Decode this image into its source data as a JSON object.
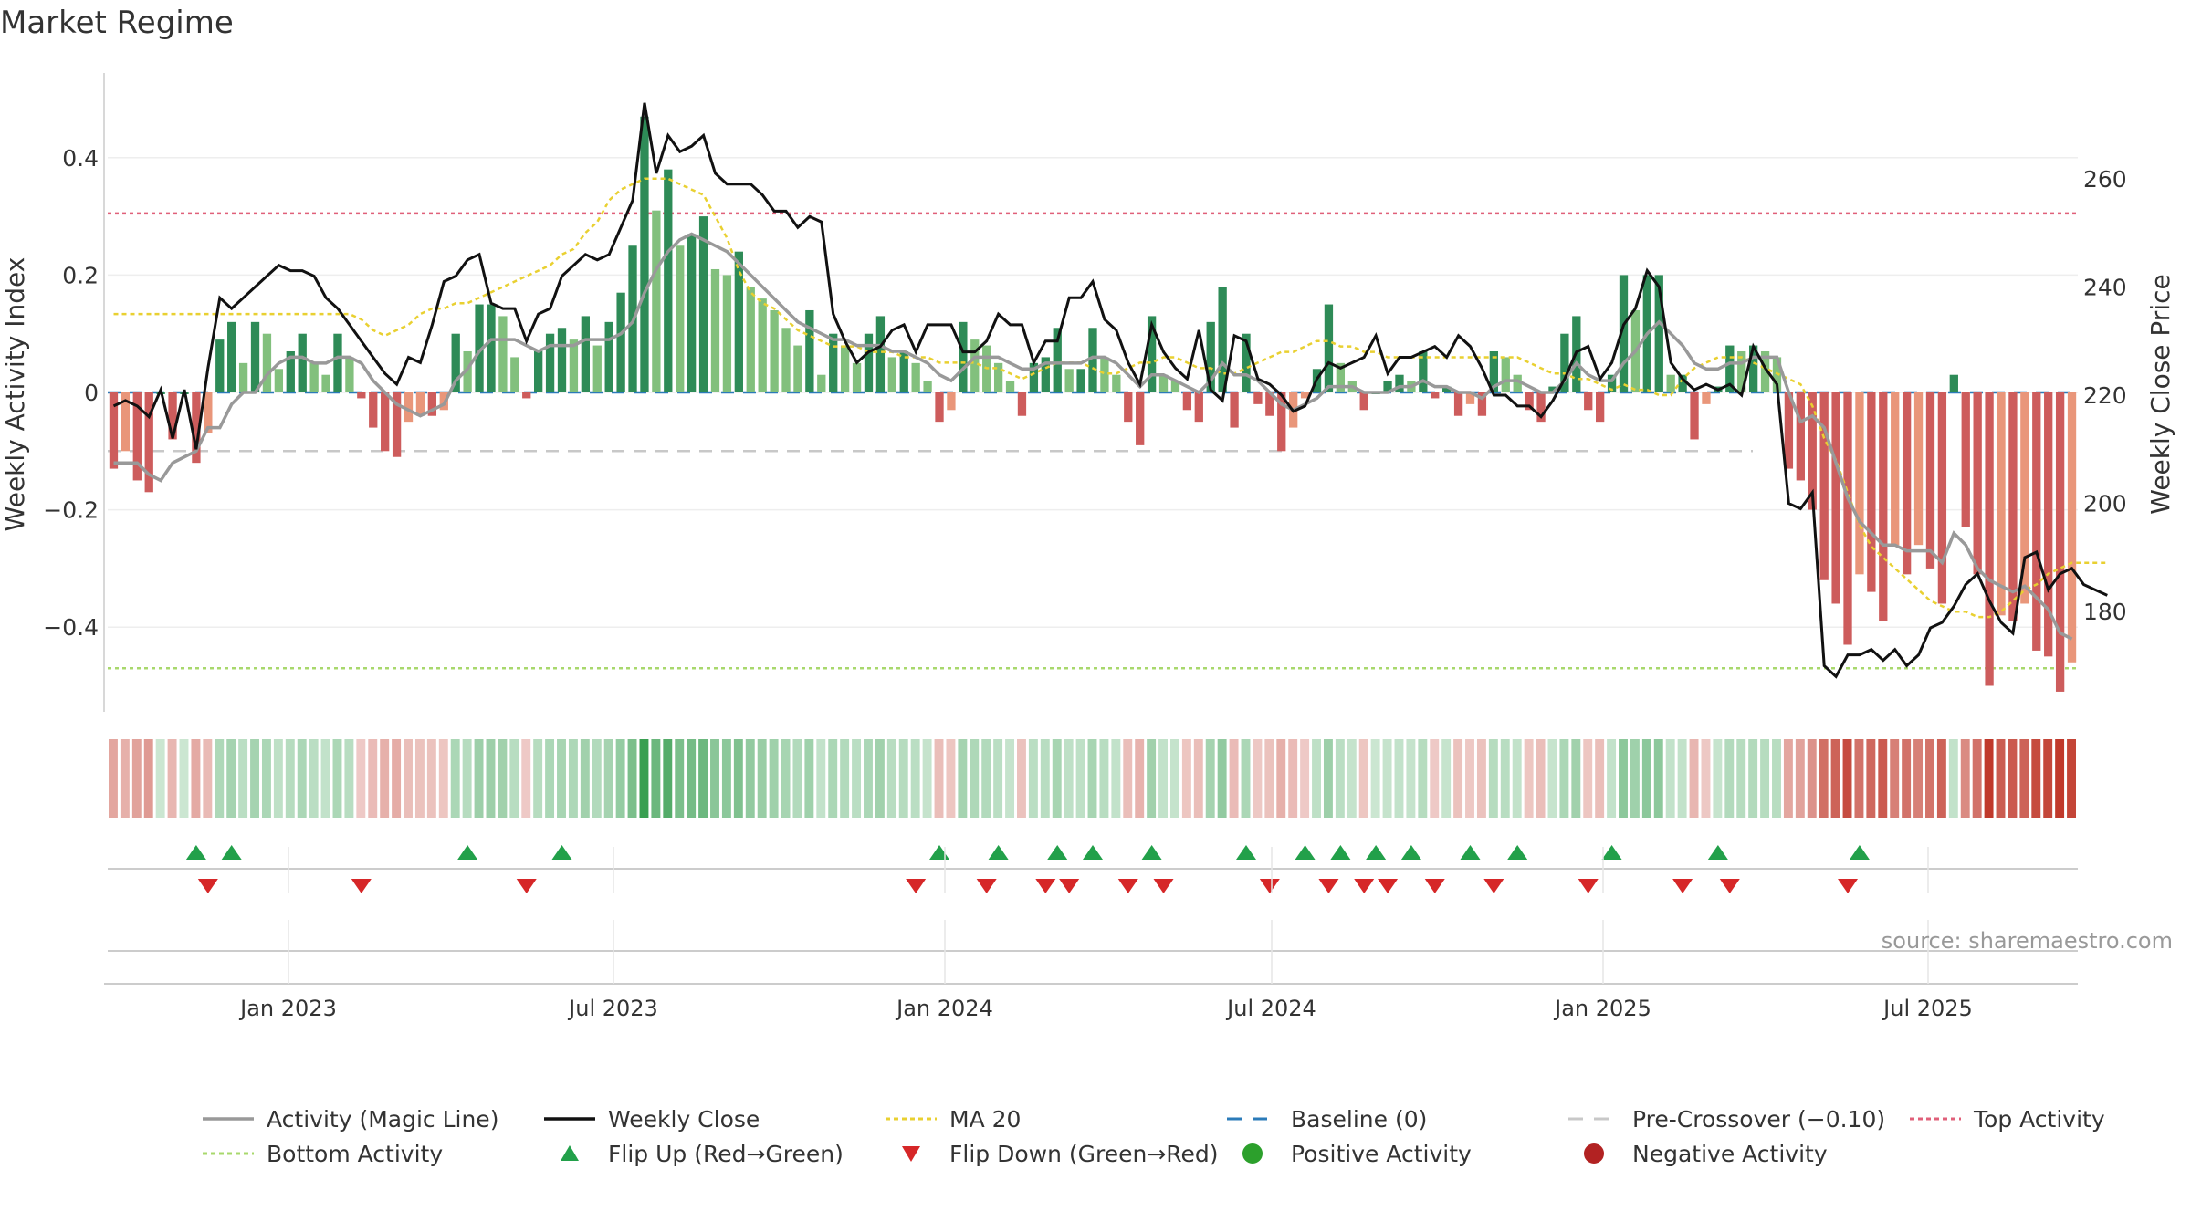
{
  "chart_data": {
    "type": "bar",
    "title": "Market Regime",
    "ylabel": "Weekly Activity Index",
    "ylabel_right": "Weekly Close Price",
    "ylim": [
      -0.54,
      0.54
    ],
    "ylim_right": [
      162,
      278
    ],
    "x_ticks": [
      "Jan 2023",
      "Jul 2023",
      "Jan 2024",
      "Jul 2024",
      "Jan 2025",
      "Jul 2025"
    ],
    "y_ticks": [
      "0.4",
      "0.2",
      "0",
      "−0.2",
      "−0.4"
    ],
    "y_ticks_right": [
      "260",
      "240",
      "220",
      "200",
      "180"
    ],
    "reference_lines": {
      "top_activity": 0.305,
      "bottom_activity": -0.47,
      "pre_crossover": -0.1,
      "baseline": 0
    },
    "activity": [
      -0.13,
      -0.1,
      -0.15,
      -0.17,
      0.0,
      -0.08,
      0.0,
      -0.12,
      -0.07,
      0.09,
      0.12,
      0.05,
      0.12,
      0.1,
      0.04,
      0.07,
      0.1,
      0.05,
      0.03,
      0.1,
      0.06,
      -0.01,
      -0.06,
      -0.1,
      -0.11,
      -0.05,
      -0.04,
      -0.04,
      -0.03,
      0.1,
      0.07,
      0.15,
      0.15,
      0.13,
      0.06,
      -0.01,
      0.07,
      0.1,
      0.11,
      0.09,
      0.13,
      0.08,
      0.12,
      0.17,
      0.25,
      0.47,
      0.31,
      0.38,
      0.25,
      0.27,
      0.3,
      0.21,
      0.2,
      0.24,
      0.18,
      0.16,
      0.14,
      0.11,
      0.08,
      0.14,
      0.03,
      0.1,
      0.08,
      0.05,
      0.1,
      0.13,
      0.06,
      0.07,
      0.05,
      0.02,
      -0.05,
      -0.03,
      0.12,
      0.09,
      0.08,
      0.05,
      0.02,
      -0.04,
      0.05,
      0.06,
      0.11,
      0.04,
      0.04,
      0.11,
      0.06,
      0.03,
      -0.05,
      -0.09,
      0.13,
      0.03,
      0.02,
      -0.03,
      -0.05,
      0.12,
      0.18,
      -0.06,
      0.1,
      -0.02,
      -0.04,
      -0.1,
      -0.06,
      -0.01,
      0.04,
      0.15,
      0.05,
      0.02,
      -0.03,
      0.0,
      0.02,
      0.03,
      0.02,
      0.07,
      -0.01,
      0.01,
      -0.04,
      -0.02,
      -0.04,
      0.07,
      0.06,
      0.03,
      -0.03,
      -0.05,
      0.01,
      0.1,
      0.13,
      -0.03,
      -0.05,
      0.03,
      0.2,
      0.14,
      0.2,
      0.2,
      0.03,
      0.03,
      -0.08,
      -0.02,
      0.01,
      0.08,
      0.07,
      0.08,
      0.07,
      0.06,
      -0.13,
      -0.15,
      -0.2,
      -0.32,
      -0.36,
      -0.43,
      -0.31,
      -0.34,
      -0.39,
      -0.26,
      -0.31,
      -0.26,
      -0.3,
      -0.36,
      0.03,
      -0.23,
      -0.31,
      -0.5,
      -0.38,
      -0.39,
      -0.36,
      -0.44,
      -0.45,
      -0.51,
      -0.46
    ],
    "magic_line": [
      -0.12,
      -0.12,
      -0.12,
      -0.14,
      -0.15,
      -0.12,
      -0.11,
      -0.1,
      -0.06,
      -0.06,
      -0.02,
      0.0,
      0.0,
      0.03,
      0.05,
      0.06,
      0.06,
      0.05,
      0.05,
      0.06,
      0.06,
      0.05,
      0.02,
      0.0,
      -0.02,
      -0.03,
      -0.04,
      -0.03,
      -0.02,
      0.02,
      0.04,
      0.07,
      0.09,
      0.09,
      0.09,
      0.08,
      0.07,
      0.08,
      0.08,
      0.08,
      0.09,
      0.09,
      0.09,
      0.1,
      0.12,
      0.17,
      0.21,
      0.24,
      0.26,
      0.27,
      0.26,
      0.25,
      0.24,
      0.22,
      0.2,
      0.18,
      0.16,
      0.14,
      0.12,
      0.11,
      0.1,
      0.09,
      0.09,
      0.08,
      0.08,
      0.08,
      0.07,
      0.07,
      0.06,
      0.05,
      0.03,
      0.02,
      0.04,
      0.06,
      0.06,
      0.06,
      0.05,
      0.04,
      0.04,
      0.05,
      0.05,
      0.05,
      0.05,
      0.06,
      0.06,
      0.05,
      0.03,
      0.01,
      0.03,
      0.03,
      0.02,
      0.01,
      0.0,
      0.02,
      0.05,
      0.03,
      0.03,
      0.02,
      0.0,
      -0.02,
      -0.03,
      -0.02,
      -0.01,
      0.01,
      0.01,
      0.01,
      0.0,
      0.0,
      0.0,
      0.01,
      0.01,
      0.02,
      0.01,
      0.01,
      0.0,
      0.0,
      -0.01,
      0.01,
      0.02,
      0.02,
      0.01,
      0.0,
      0.0,
      0.02,
      0.05,
      0.03,
      0.02,
      0.02,
      0.05,
      0.07,
      0.1,
      0.12,
      0.1,
      0.08,
      0.05,
      0.04,
      0.04,
      0.05,
      0.05,
      0.06,
      0.06,
      0.06,
      0.0,
      -0.05,
      -0.04,
      -0.06,
      -0.12,
      -0.18,
      -0.22,
      -0.24,
      -0.26,
      -0.26,
      -0.27,
      -0.27,
      -0.27,
      -0.29,
      -0.24,
      -0.26,
      -0.3,
      -0.32,
      -0.33,
      -0.34,
      -0.33,
      -0.35,
      -0.37,
      -0.41,
      -0.42
    ],
    "weekly_close": [
      218,
      219,
      218,
      216,
      221,
      212,
      221,
      210,
      225,
      238,
      236,
      238,
      240,
      242,
      244,
      243,
      243,
      242,
      238,
      236,
      233,
      230,
      227,
      224,
      222,
      227,
      226,
      233,
      241,
      242,
      245,
      246,
      237,
      236,
      236,
      230,
      235,
      236,
      242,
      244,
      246,
      245,
      246,
      251,
      256,
      274,
      261,
      268,
      265,
      266,
      268,
      261,
      259,
      259,
      259,
      257,
      254,
      254,
      251,
      253,
      252,
      235,
      230,
      226,
      228,
      229,
      232,
      233,
      228,
      233,
      233,
      233,
      228,
      228,
      230,
      235,
      233,
      233,
      226,
      230,
      230,
      238,
      238,
      241,
      234,
      232,
      226,
      222,
      233,
      228,
      225,
      223,
      232,
      221,
      219,
      231,
      230,
      223,
      222,
      220,
      217,
      218,
      223,
      226,
      225,
      226,
      227,
      231,
      224,
      227,
      227,
      228,
      229,
      227,
      231,
      229,
      225,
      220,
      220,
      218,
      218,
      216,
      219,
      223,
      228,
      229,
      223,
      226,
      233,
      236,
      243,
      240,
      226,
      223,
      221,
      222,
      221,
      222,
      220,
      229,
      225,
      222,
      200,
      199,
      202,
      170,
      168,
      172,
      172,
      173,
      171,
      173,
      170,
      172,
      177,
      178,
      181,
      185,
      187,
      182,
      178,
      176,
      190,
      191,
      184,
      187,
      188,
      185,
      184,
      183
    ],
    "ma20": [
      235,
      235,
      235,
      235,
      235,
      235,
      235,
      235,
      235,
      235,
      235,
      235,
      235,
      235,
      235,
      235,
      235,
      235,
      235,
      235,
      235,
      234,
      232,
      231,
      232,
      233,
      235,
      236,
      236,
      237,
      237,
      238,
      239,
      240,
      241,
      242,
      243,
      244,
      246,
      247,
      250,
      252,
      256,
      258,
      259,
      260,
      260,
      260,
      259,
      258,
      257,
      253,
      249,
      243,
      239,
      237,
      236,
      234,
      232,
      231,
      230,
      229,
      229,
      229,
      228,
      228,
      228,
      227,
      227,
      227,
      226,
      226,
      226,
      226,
      225,
      225,
      224,
      223,
      224,
      225,
      226,
      226,
      226,
      225,
      224,
      224,
      225,
      226,
      226,
      227,
      227,
      226,
      225,
      225,
      224,
      224,
      225,
      226,
      227,
      228,
      228,
      229,
      230,
      230,
      229,
      229,
      228,
      228,
      227,
      227,
      227,
      227,
      227,
      227,
      227,
      227,
      227,
      227,
      227,
      227,
      226,
      225,
      224,
      224,
      223,
      223,
      222,
      221,
      222,
      221,
      221,
      220,
      220,
      223,
      225,
      226,
      227,
      227,
      227,
      226,
      225,
      224,
      223,
      222,
      218,
      212,
      208,
      202,
      196,
      192,
      190,
      188,
      186,
      184,
      182,
      181,
      180,
      180,
      179,
      179,
      180,
      182,
      184,
      185,
      187,
      188,
      189,
      189,
      189,
      189
    ],
    "flips_up": [
      7,
      10,
      30,
      38,
      70,
      75,
      80,
      83,
      88,
      96,
      101,
      104,
      107,
      110,
      115,
      119,
      127,
      136,
      148
    ],
    "flips_down": [
      8,
      21,
      35,
      68,
      74,
      79,
      81,
      86,
      89,
      98,
      103,
      106,
      108,
      112,
      117,
      125,
      133,
      137,
      147
    ],
    "source": "source: sharemaestro.com",
    "legend": [
      {
        "label": "Activity (Magic Line)",
        "kind": "line",
        "color": "#999999"
      },
      {
        "label": "Weekly Close",
        "kind": "line",
        "color": "#111111"
      },
      {
        "label": "MA 20",
        "kind": "dotted",
        "color": "#e9d031"
      },
      {
        "label": "Baseline (0)",
        "kind": "dashed",
        "color": "#2b7bb9"
      },
      {
        "label": "Pre-Crossover (−0.10)",
        "kind": "dashed",
        "color": "#c8c8c8"
      },
      {
        "label": "Top Activity",
        "kind": "dotted",
        "color": "#e0607a"
      },
      {
        "label": "Bottom Activity",
        "kind": "dotted",
        "color": "#a8d86c"
      },
      {
        "label": "Flip Up (Red→Green)",
        "kind": "up",
        "color": "#22a04a"
      },
      {
        "label": "Flip Down (Green→Red)",
        "kind": "down",
        "color": "#d62728"
      },
      {
        "label": "Positive Activity",
        "kind": "dot",
        "color": "#2ca02c"
      },
      {
        "label": "Negative Activity",
        "kind": "dot",
        "color": "#b22222"
      }
    ]
  },
  "colors": {
    "green_dark": "#2e8b57",
    "green_light": "#82c07d",
    "red_dark": "#cd5c5c",
    "red_light": "#e9967a"
  }
}
